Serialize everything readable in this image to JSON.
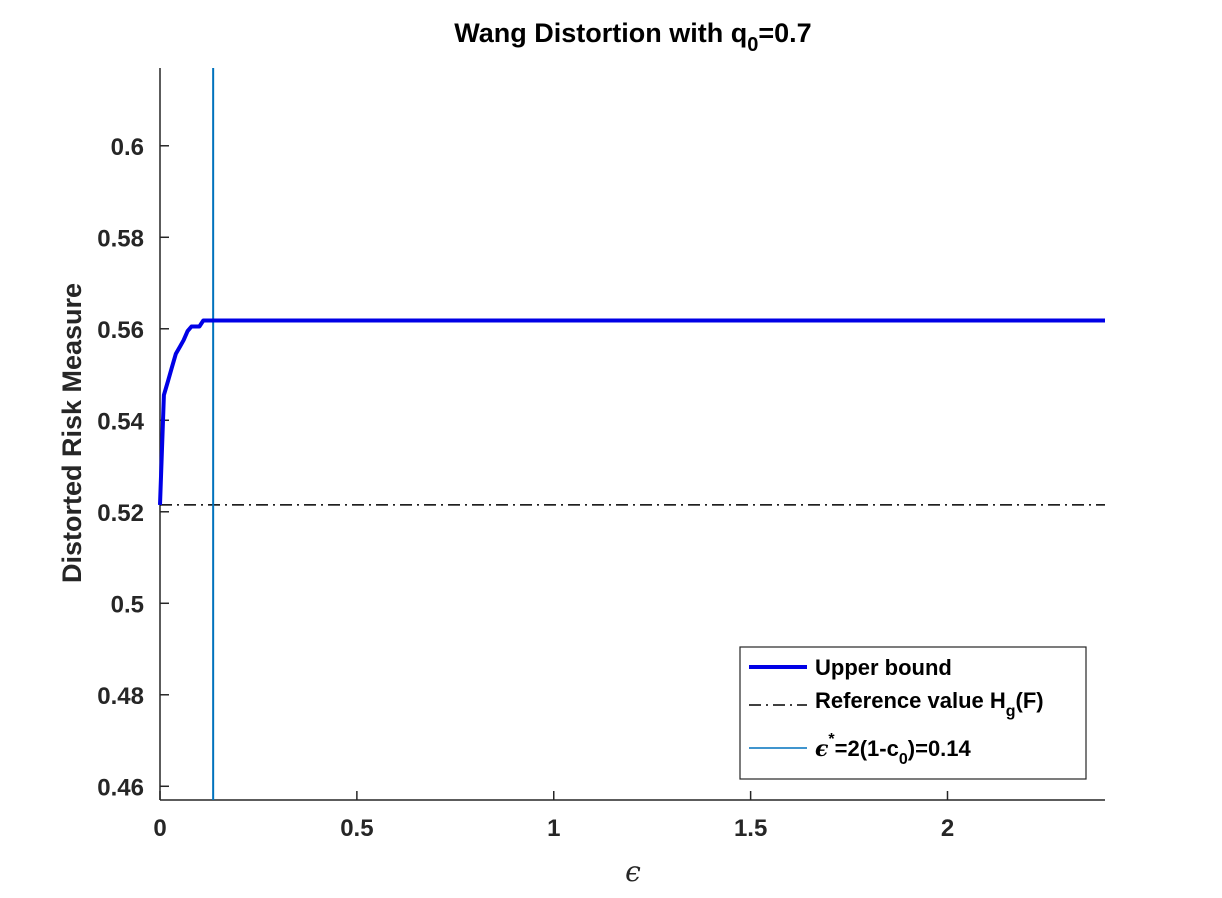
{
  "chart_data": {
    "type": "line",
    "title": "Wang Distortion with q",
    "title_sub": "0",
    "title_suffix": "=0.7",
    "xlabel": "ϵ",
    "ylabel": "Distorted Risk Measure",
    "xlim": [
      0,
      2.4
    ],
    "ylim": [
      0.457,
      0.617
    ],
    "xticks": [
      0,
      0.5,
      1,
      1.5,
      2
    ],
    "xtick_labels": [
      "0",
      "0.5",
      "1",
      "1.5",
      "2"
    ],
    "yticks": [
      0.46,
      0.48,
      0.5,
      0.52,
      0.54,
      0.56,
      0.58,
      0.6
    ],
    "ytick_labels": [
      "0.46",
      "0.48",
      "0.5",
      "0.52",
      "0.54",
      "0.56",
      "0.58",
      "0.6"
    ],
    "grid": false,
    "legend_position": "bottom-right",
    "series": [
      {
        "name": "Upper bound",
        "color": "#0000e6",
        "style": "solid",
        "x": [
          0,
          0.01,
          0.02,
          0.03,
          0.04,
          0.05,
          0.06,
          0.07,
          0.08,
          0.09,
          0.1,
          0.11,
          0.12,
          0.13,
          0.14,
          0.5,
          1,
          1.5,
          2,
          2.4
        ],
        "y": [
          0.5215,
          0.5455,
          0.5485,
          0.5515,
          0.5545,
          0.556,
          0.5575,
          0.5595,
          0.5605,
          0.5605,
          0.5605,
          0.5618,
          0.5618,
          0.5618,
          0.5618,
          0.5618,
          0.5618,
          0.5618,
          0.5618,
          0.5618
        ]
      },
      {
        "name": "Reference value H",
        "name_sub": "g",
        "name_suffix": "(F)",
        "color": "#000000",
        "style": "dashdot",
        "y": 0.5215
      },
      {
        "name": "ϵ",
        "name_sup": "*",
        "name_mid": "=2(1-c",
        "name_sub": "0",
        "name_suffix": ")=0.14",
        "color": "#0072bd",
        "style": "vertical",
        "x": 0.135
      }
    ]
  }
}
